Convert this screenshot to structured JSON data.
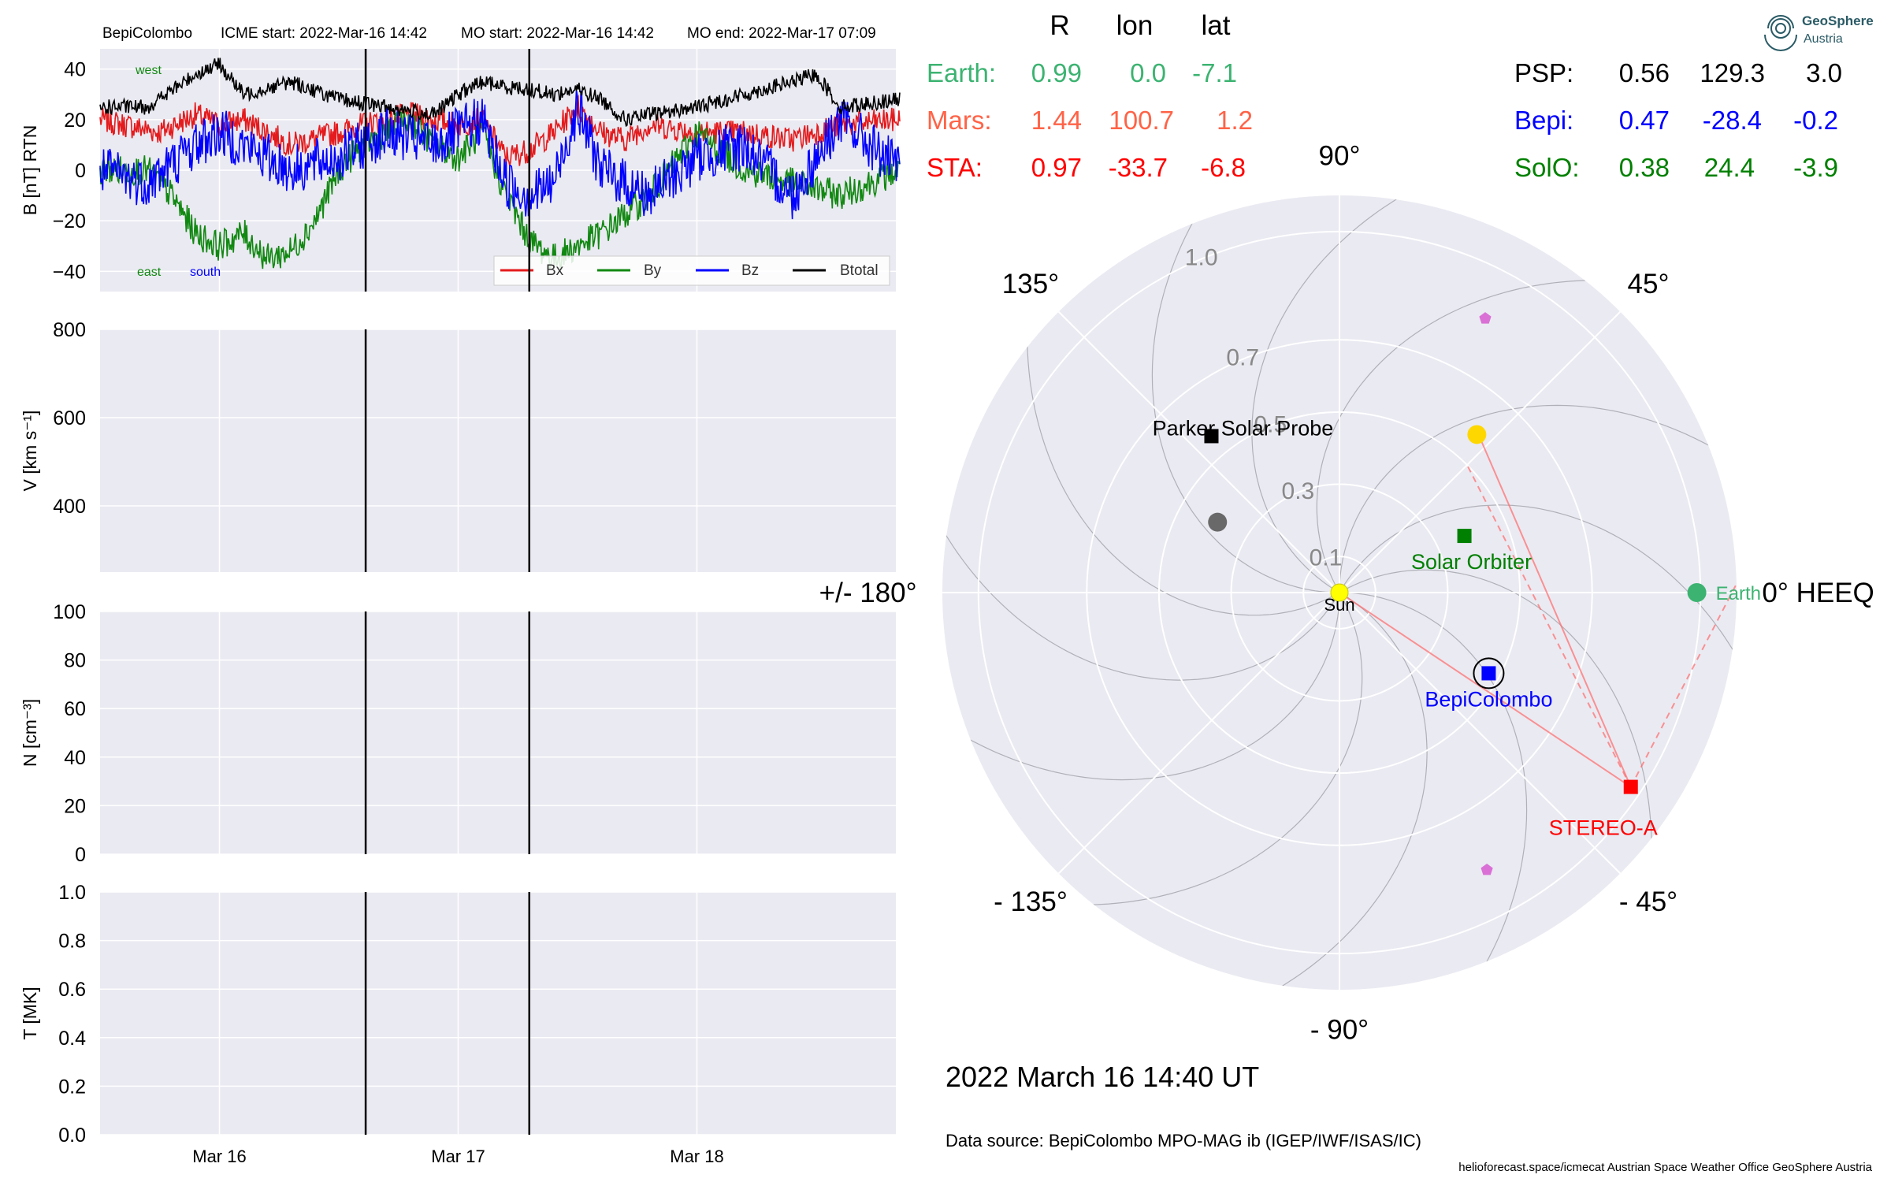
{
  "header": {
    "spacecraft": "BepiColombo",
    "icme_start": "ICME start: 2022-Mar-16 14:42",
    "mo_start": "MO start: 2022-Mar-16 14:42",
    "mo_end": "MO end: 2022-Mar-17 07:09"
  },
  "branding": {
    "name": "GeoSphere",
    "sub": "Austria"
  },
  "colors": {
    "panel_bg": "#eaeaf2",
    "bx": "#e41a1c",
    "by": "#118811",
    "bz": "#0000ff",
    "btotal": "#000000",
    "earth": "#3cb371",
    "mars": "#ff6347",
    "sta": "#ff0000",
    "psp": "#000000",
    "bepi": "#0000ff",
    "solo": "#008000"
  },
  "chart_data": [
    {
      "type": "line",
      "name": "magnetic-field",
      "ylabel": "B [nT] RTN",
      "ylim": [
        -48,
        48
      ],
      "yticks": [
        "40",
        "20",
        "0",
        "−20",
        "−40"
      ],
      "ytick_values": [
        40,
        20,
        0,
        -20,
        -40
      ],
      "x_range": [
        "2022-03-15T12:00",
        "2022-03-18T20:00"
      ],
      "event_lines": [
        "2022-03-16T14:42",
        "2022-03-17T07:09"
      ],
      "annotations": {
        "west": "west",
        "east": "east",
        "south": "south"
      },
      "legend": {
        "placement": "lower-right",
        "entries": [
          "Bx",
          "By",
          "Bz",
          "Btotal"
        ]
      },
      "series": [
        {
          "name": "Bx",
          "color": "#e41a1c",
          "x_days": [
            0,
            0.25,
            0.4,
            0.5,
            0.6,
            0.8,
            1.0,
            1.1,
            1.2,
            1.3,
            1.4,
            1.5,
            1.6,
            1.7,
            1.8,
            1.9,
            2.0,
            2.1,
            2.2,
            2.3,
            2.5,
            2.7,
            2.9,
            3.1,
            3.35
          ],
          "values": [
            20,
            15,
            22,
            18,
            20,
            10,
            15,
            18,
            20,
            22,
            20,
            18,
            20,
            5,
            8,
            15,
            25,
            15,
            12,
            18,
            15,
            15,
            12,
            18,
            20
          ]
        },
        {
          "name": "By",
          "color": "#118811",
          "x_days": [
            0,
            0.2,
            0.3,
            0.4,
            0.5,
            0.6,
            0.7,
            0.8,
            0.9,
            1.0,
            1.1,
            1.2,
            1.3,
            1.4,
            1.5,
            1.6,
            1.7,
            1.8,
            1.9,
            2.0,
            2.1,
            2.3,
            2.5,
            2.7,
            2.9,
            3.1,
            3.35
          ],
          "values": [
            0,
            0,
            -10,
            -25,
            -30,
            -25,
            -35,
            -32,
            -20,
            0,
            10,
            15,
            20,
            10,
            5,
            15,
            -10,
            -28,
            -35,
            -30,
            -25,
            -10,
            15,
            0,
            -5,
            -10,
            0
          ]
        },
        {
          "name": "Bz",
          "color": "#0000ff",
          "x_days": [
            0,
            0.2,
            0.4,
            0.5,
            0.6,
            0.8,
            1.0,
            1.2,
            1.4,
            1.5,
            1.6,
            1.7,
            1.8,
            1.9,
            2.0,
            2.1,
            2.2,
            2.3,
            2.5,
            2.7,
            2.9,
            3.1,
            3.35
          ],
          "values": [
            0,
            -5,
            10,
            15,
            10,
            0,
            5,
            15,
            10,
            15,
            20,
            -5,
            -10,
            -5,
            25,
            0,
            -5,
            -10,
            5,
            10,
            -10,
            20,
            0
          ]
        },
        {
          "name": "Btotal",
          "color": "#000000",
          "x_days": [
            0,
            0.2,
            0.4,
            0.5,
            0.6,
            0.8,
            1.0,
            1.2,
            1.4,
            1.5,
            1.6,
            1.7,
            1.8,
            1.9,
            2.0,
            2.1,
            2.2,
            2.3,
            2.5,
            2.7,
            2.9,
            3.0,
            3.1,
            3.35
          ],
          "values": [
            25,
            25,
            38,
            42,
            30,
            35,
            28,
            25,
            22,
            30,
            35,
            33,
            32,
            30,
            32,
            28,
            20,
            22,
            25,
            30,
            35,
            38,
            25,
            28
          ]
        }
      ]
    },
    {
      "type": "line",
      "name": "speed",
      "ylabel": "V [km s⁻¹]",
      "ylim": [
        250,
        800
      ],
      "yticks": [
        "800",
        "600",
        "400"
      ],
      "ytick_values": [
        800,
        600,
        400
      ],
      "series": []
    },
    {
      "type": "line",
      "name": "density",
      "ylabel": "N [cm⁻³]",
      "ylim": [
        0,
        100
      ],
      "yticks": [
        "100",
        "80",
        "60",
        "40",
        "20",
        "0"
      ],
      "ytick_values": [
        100,
        80,
        60,
        40,
        20,
        0
      ],
      "series": []
    },
    {
      "type": "line",
      "name": "temperature",
      "ylabel": "T [MK]",
      "ylim": [
        0.0,
        1.0
      ],
      "yticks": [
        "1.0",
        "0.8",
        "0.6",
        "0.4",
        "0.2",
        "0.0"
      ],
      "ytick_values": [
        1.0,
        0.8,
        0.6,
        0.4,
        0.2,
        0.0
      ],
      "series": [],
      "xticks": [
        "Mar 16",
        "Mar 17",
        "Mar 18"
      ],
      "xtick_dates": [
        "2022-03-16",
        "2022-03-17",
        "2022-03-18"
      ]
    },
    {
      "type": "scatter",
      "name": "polar-positions",
      "coordinate_system": "HEEQ",
      "radius_max": 1.1,
      "radial_ticks": [
        "0.1",
        "0.3",
        "0.5",
        "0.7",
        "1.0"
      ],
      "radial_tick_values": [
        0.1,
        0.3,
        0.5,
        0.7,
        1.0
      ],
      "angle_labels": [
        "0° HEEQ",
        "45°",
        "90°",
        "135°",
        "+/- 180°",
        "- 135°",
        "- 90°",
        "- 45°"
      ],
      "angle_values": [
        0,
        45,
        90,
        135,
        180,
        -135,
        -90,
        -45
      ],
      "bodies": [
        {
          "name": "Sun",
          "label": "Sun",
          "r": 0.0,
          "lon": 0.0,
          "color": "#ffff00",
          "marker": "circle"
        },
        {
          "name": "Earth",
          "label": "Earth",
          "r": 0.99,
          "lon": 0.0,
          "color": "#3cb371",
          "marker": "circle"
        },
        {
          "name": "Mars",
          "label": "",
          "r": 0.58,
          "lon": 49.0,
          "color": "#ffd700",
          "marker": "circle"
        },
        {
          "name": "Mercury",
          "label": "",
          "r": 0.39,
          "lon": 150.0,
          "color": "#696969",
          "marker": "circle"
        },
        {
          "name": "STEREO-A",
          "label": "STEREO-A",
          "r": 0.97,
          "lon": -33.7,
          "color": "#ff0000",
          "marker": "square"
        },
        {
          "name": "Parker Solar Probe",
          "label": "Parker Solar Probe",
          "r": 0.56,
          "lon": 129.3,
          "color": "#000000",
          "marker": "square"
        },
        {
          "name": "BepiColombo",
          "label": "BepiColombo",
          "r": 0.47,
          "lon": -28.4,
          "color": "#0000ff",
          "marker": "square"
        },
        {
          "name": "Solar Orbiter",
          "label": "Solar Orbiter",
          "r": 0.38,
          "lon": 24.4,
          "color": "#008000",
          "marker": "square"
        },
        {
          "name": "marker-upper",
          "label": "",
          "r": 0.86,
          "lon": 62.0,
          "color": "#da70d6",
          "marker": "pentagon"
        },
        {
          "name": "marker-lower",
          "label": "",
          "r": 0.87,
          "lon": -62.0,
          "color": "#da70d6",
          "marker": "pentagon"
        }
      ]
    }
  ],
  "positions_table": {
    "headers": [
      "R",
      "lon",
      "lat"
    ],
    "left": [
      {
        "name": "Earth:",
        "R": "0.99",
        "lon": "0.0",
        "lat": "-7.1",
        "color": "#3cb371"
      },
      {
        "name": "Mars:",
        "R": "1.44",
        "lon": "100.7",
        "lat": "1.2",
        "color": "#ff6347"
      },
      {
        "name": "STA:",
        "R": "0.97",
        "lon": "-33.7",
        "lat": "-6.8",
        "color": "#ff0000"
      }
    ],
    "right": [
      {
        "name": "PSP:",
        "R": "0.56",
        "lon": "129.3",
        "lat": "3.0",
        "color": "#000000"
      },
      {
        "name": "Bepi:",
        "R": "0.47",
        "lon": "-28.4",
        "lat": "-0.2",
        "color": "#0000ff"
      },
      {
        "name": "SolO:",
        "R": "0.38",
        "lon": "24.4",
        "lat": "-3.9",
        "color": "#008000"
      }
    ]
  },
  "timestamp": "2022 March 16  14:40 UT",
  "data_source": "Data source: BepiColombo MPO-MAG ib (IGEP/IWF/ISAS/IC)",
  "footer": "helioforecast.space/icmecat   Austrian Space Weather Office   GeoSphere Austria"
}
